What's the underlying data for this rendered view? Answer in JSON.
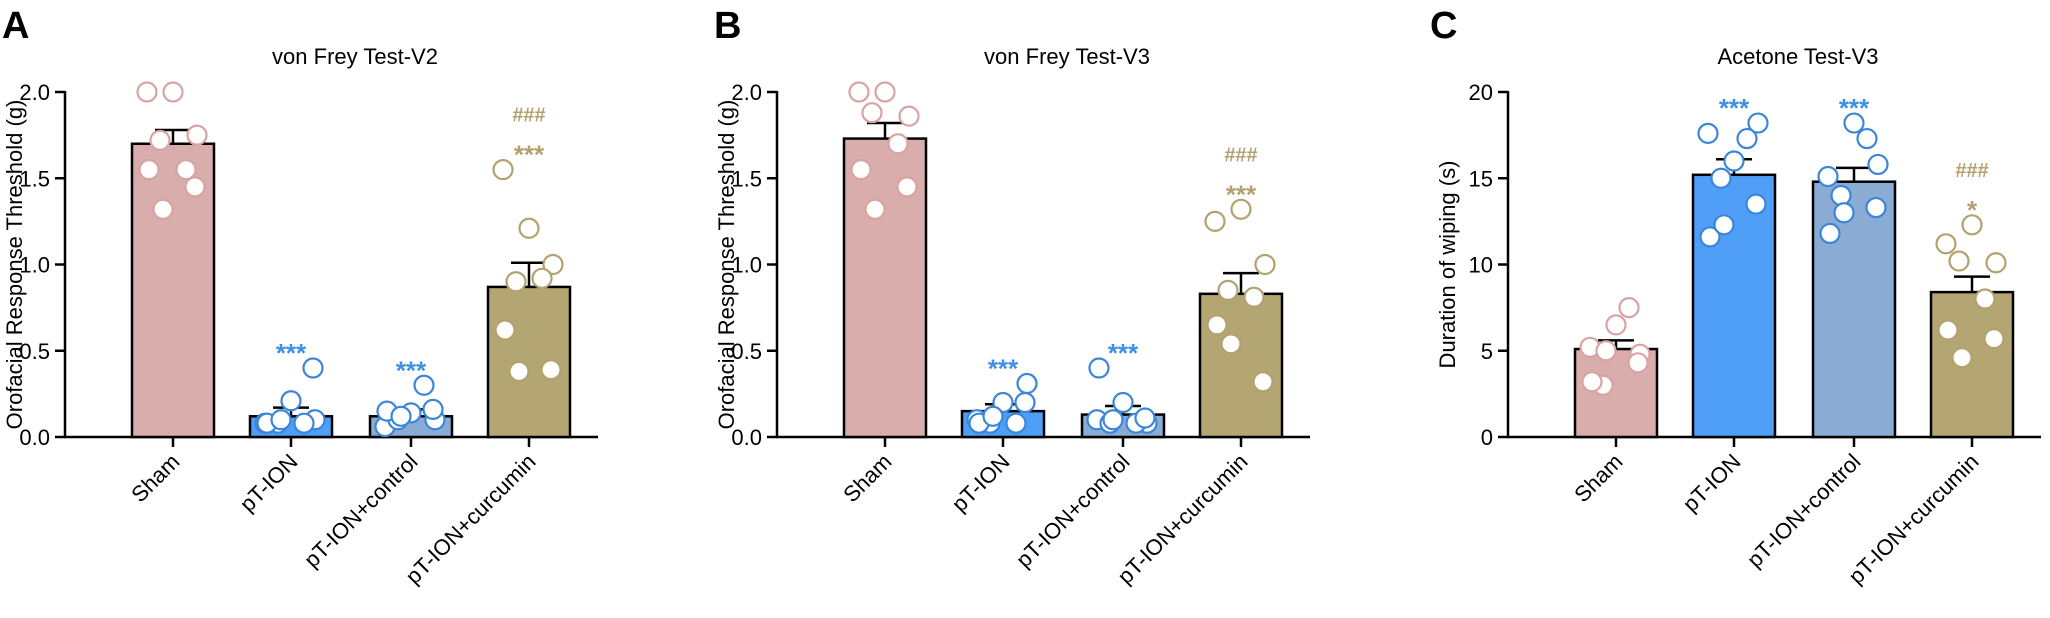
{
  "colors": {
    "sham_fill": "#d8adac",
    "sham_point": "#d9a3a3",
    "pt_ion_fill": "#4f9ff8",
    "pt_ion_control_fill": "#8aabd4",
    "curcumin_fill": "#b3a672",
    "curcumin_point": "#b3a26f",
    "blue_point": "#3b86d8",
    "blue_star": "#3f8fe3",
    "tan_star": "#b3a26f"
  },
  "chart_data": [
    {
      "type": "bar",
      "panel_label": "A",
      "title": "von Frey Test-V2",
      "xlabel": "",
      "ylabel": "Orofacial Response Threshold (g)",
      "ylim": [
        0,
        2.0
      ],
      "yticks": [
        "0.0",
        "0.5",
        "1.0",
        "1.5",
        "2.0"
      ],
      "ytick_values": [
        0,
        0.5,
        1.0,
        1.5,
        2.0
      ],
      "categories": [
        "Sham",
        "pT-ION",
        "pT-ION+control",
        "pT-ION+curcumin"
      ],
      "values": [
        1.7,
        0.12,
        0.12,
        0.87
      ],
      "sem": [
        0.08,
        0.05,
        0.04,
        0.14
      ],
      "points": [
        [
          2.0,
          2.0,
          1.75,
          1.72,
          1.55,
          1.55,
          1.32,
          1.45
        ],
        [
          0.08,
          0.21,
          0.1,
          0.08,
          0.08,
          0.08,
          0.1,
          0.4
        ],
        [
          0.06,
          0.14,
          0.1,
          0.1,
          0.3,
          0.15,
          0.12,
          0.16
        ],
        [
          1.55,
          1.21,
          1.0,
          0.9,
          0.92,
          0.62,
          0.38,
          0.39
        ]
      ],
      "significance": [
        {
          "category_index": 1,
          "lines": [
            "***"
          ]
        },
        {
          "category_index": 2,
          "lines": [
            "***"
          ]
        },
        {
          "category_index": 3,
          "lines": [
            "###",
            "***"
          ]
        }
      ]
    },
    {
      "type": "bar",
      "panel_label": "B",
      "title": "von Frey Test-V3",
      "xlabel": "",
      "ylabel": "Orofacial Response Threshold (g)",
      "ylim": [
        0,
        2.0
      ],
      "yticks": [
        "0.0",
        "0.5",
        "1.0",
        "1.5",
        "2.0"
      ],
      "ytick_values": [
        0,
        0.5,
        1.0,
        1.5,
        2.0
      ],
      "categories": [
        "Sham",
        "pT-ION",
        "pT-ION+control",
        "pT-ION+curcumin"
      ],
      "values": [
        1.73,
        0.15,
        0.13,
        0.83
      ],
      "sem": [
        0.09,
        0.04,
        0.05,
        0.12
      ],
      "points": [
        [
          2.0,
          2.0,
          1.86,
          1.88,
          1.7,
          1.55,
          1.32,
          1.45
        ],
        [
          0.1,
          0.2,
          0.31,
          0.08,
          0.08,
          0.08,
          0.12,
          0.2
        ],
        [
          0.1,
          0.2,
          0.08,
          0.08,
          0.08,
          0.4,
          0.1,
          0.11
        ],
        [
          1.25,
          1.32,
          1.0,
          0.85,
          0.81,
          0.65,
          0.54,
          0.32
        ]
      ],
      "significance": [
        {
          "category_index": 1,
          "lines": [
            "***"
          ]
        },
        {
          "category_index": 2,
          "lines": [
            "***"
          ]
        },
        {
          "category_index": 3,
          "lines": [
            "###",
            "***"
          ]
        }
      ]
    },
    {
      "type": "bar",
      "panel_label": "C",
      "title": "Acetone Test-V3",
      "xlabel": "",
      "ylabel": "Duration of wiping (s)",
      "ylim": [
        0,
        20
      ],
      "yticks": [
        "0",
        "5",
        "10",
        "15",
        "20"
      ],
      "ytick_values": [
        0,
        5,
        10,
        15,
        20
      ],
      "categories": [
        "Sham",
        "pT-ION",
        "pT-ION+control",
        "pT-ION+curcumin"
      ],
      "values": [
        5.1,
        15.2,
        14.8,
        8.4
      ],
      "sem": [
        0.5,
        0.9,
        0.8,
        0.9
      ],
      "points": [
        [
          5.2,
          6.5,
          4.8,
          3.0,
          7.5,
          3.2,
          5.0,
          4.3
        ],
        [
          17.6,
          16.0,
          18.2,
          15.0,
          17.3,
          11.6,
          12.3,
          13.5
        ],
        [
          15.1,
          18.2,
          15.8,
          14.0,
          17.3,
          11.8,
          13.0,
          13.3
        ],
        [
          11.2,
          12.3,
          10.1,
          10.2,
          8.0,
          6.2,
          4.6,
          5.7
        ]
      ],
      "significance": [
        {
          "category_index": 1,
          "lines": [
            "***"
          ]
        },
        {
          "category_index": 2,
          "lines": [
            "***"
          ]
        },
        {
          "category_index": 3,
          "lines": [
            "###",
            "*"
          ]
        }
      ]
    }
  ]
}
